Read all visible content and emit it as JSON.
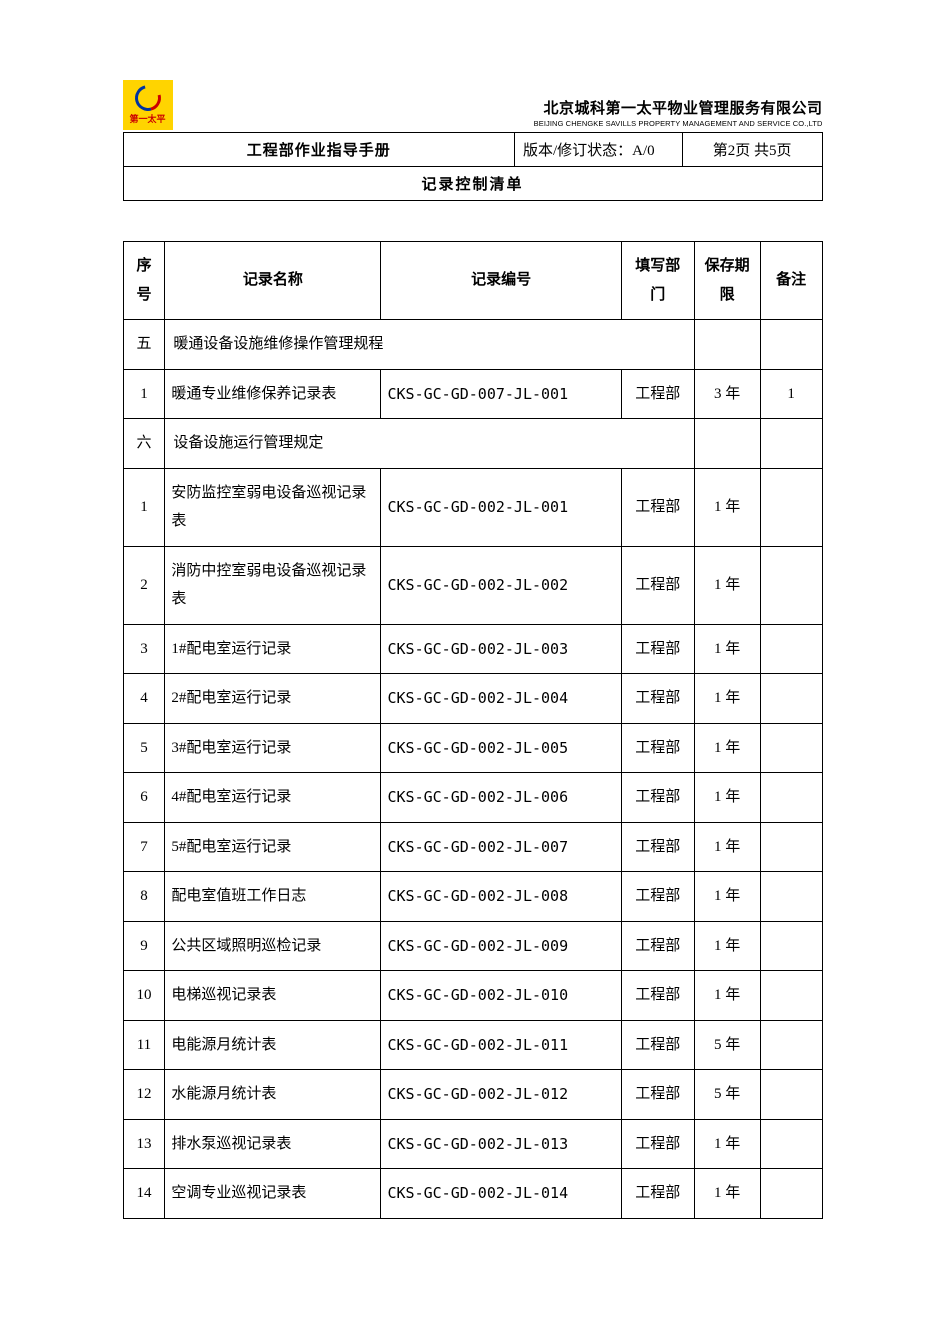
{
  "logo_caption": "第一太平",
  "company_cn": "北京城科第一太平物业管理服务有限公司",
  "company_en": "BEIJING CHENGKE SAVILLS PROPERTY MANAGEMENT AND SERVICE CO.,LTD",
  "doc_title": "工程部作业指导手册",
  "version_label": "版本/修订状态：A/0",
  "page_label": "第2页 共5页",
  "list_title": "记录控制清单",
  "columns": {
    "seq": "序号",
    "name": "记录名称",
    "code": "记录编号",
    "dept": "填写部门",
    "retention": "保存期限",
    "note": "备注"
  },
  "rows": [
    {
      "type": "section",
      "seq": "五",
      "name": "暖通设备设施维修操作管理规程"
    },
    {
      "type": "data",
      "seq": "1",
      "name": "暖通专业维修保养记录表",
      "code": "CKS-GC-GD-007-JL-001",
      "dept": "工程部",
      "retention": "3 年",
      "note": "1"
    },
    {
      "type": "section",
      "seq": "六",
      "name": "设备设施运行管理规定"
    },
    {
      "type": "data",
      "seq": "1",
      "name": "安防监控室弱电设备巡视记录表",
      "code": "CKS-GC-GD-002-JL-001",
      "dept": "工程部",
      "retention": "1 年",
      "note": ""
    },
    {
      "type": "data",
      "seq": "2",
      "name": "消防中控室弱电设备巡视记录表",
      "code": "CKS-GC-GD-002-JL-002",
      "dept": "工程部",
      "retention": "1 年",
      "note": ""
    },
    {
      "type": "data",
      "seq": "3",
      "name": "1#配电室运行记录",
      "code": "CKS-GC-GD-002-JL-003",
      "dept": "工程部",
      "retention": "1 年",
      "note": ""
    },
    {
      "type": "data",
      "seq": "4",
      "name": "2#配电室运行记录",
      "code": "CKS-GC-GD-002-JL-004",
      "dept": "工程部",
      "retention": "1 年",
      "note": ""
    },
    {
      "type": "data",
      "seq": "5",
      "name": "3#配电室运行记录",
      "code": "CKS-GC-GD-002-JL-005",
      "dept": "工程部",
      "retention": "1 年",
      "note": ""
    },
    {
      "type": "data",
      "seq": "6",
      "name": "4#配电室运行记录",
      "code": "CKS-GC-GD-002-JL-006",
      "dept": "工程部",
      "retention": "1 年",
      "note": ""
    },
    {
      "type": "data",
      "seq": "7",
      "name": "5#配电室运行记录",
      "code": "CKS-GC-GD-002-JL-007",
      "dept": "工程部",
      "retention": "1 年",
      "note": ""
    },
    {
      "type": "data",
      "seq": "8",
      "name": "配电室值班工作日志",
      "code": "CKS-GC-GD-002-JL-008",
      "dept": "工程部",
      "retention": "1 年",
      "note": ""
    },
    {
      "type": "data",
      "seq": "9",
      "name": "公共区域照明巡检记录",
      "code": "CKS-GC-GD-002-JL-009",
      "dept": "工程部",
      "retention": "1 年",
      "note": ""
    },
    {
      "type": "data",
      "seq": "10",
      "name": "电梯巡视记录表",
      "code": "CKS-GC-GD-002-JL-010",
      "dept": "工程部",
      "retention": "1 年",
      "note": ""
    },
    {
      "type": "data",
      "seq": "11",
      "name": "电能源月统计表",
      "code": "CKS-GC-GD-002-JL-011",
      "dept": "工程部",
      "retention": "5 年",
      "note": ""
    },
    {
      "type": "data",
      "seq": "12",
      "name": "水能源月统计表",
      "code": "CKS-GC-GD-002-JL-012",
      "dept": "工程部",
      "retention": "5 年",
      "note": ""
    },
    {
      "type": "data",
      "seq": "13",
      "name": "排水泵巡视记录表",
      "code": "CKS-GC-GD-002-JL-013",
      "dept": "工程部",
      "retention": "1 年",
      "note": ""
    },
    {
      "type": "data",
      "seq": "14",
      "name": "空调专业巡视记录表",
      "code": "CKS-GC-GD-002-JL-014",
      "dept": "工程部",
      "retention": "1 年",
      "note": ""
    }
  ],
  "colors": {
    "border": "#000000",
    "background": "#ffffff",
    "logo_bg": "#ffd400",
    "logo_blue": "#0033a0",
    "logo_red": "#c00000"
  }
}
